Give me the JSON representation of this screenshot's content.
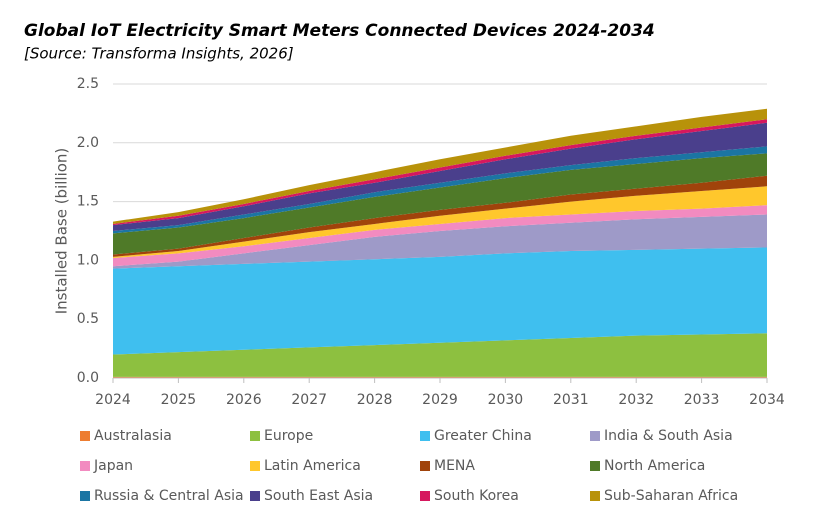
{
  "chart_data": {
    "type": "stacked-area",
    "title": "Global IoT Electricity Smart Meters Connected Devices 2024-2034",
    "subtitle": "[Source: Transforma Insights, 2026]",
    "y_label": "Installed Base (billion)",
    "x": [
      2024,
      2025,
      2026,
      2027,
      2028,
      2029,
      2030,
      2031,
      2032,
      2033,
      2034
    ],
    "xlim": [
      2024,
      2034
    ],
    "xticks": [
      2024,
      2025,
      2026,
      2027,
      2028,
      2029,
      2030,
      2031,
      2032,
      2033,
      2034
    ],
    "ylim": [
      0,
      2.5
    ],
    "yticks": [
      {
        "value": 0,
        "label": "0.0"
      },
      0.5,
      {
        "value": 1,
        "label": "1.0"
      },
      1.5,
      {
        "value": 2,
        "label": "2.0"
      },
      2.5
    ],
    "grid": true,
    "series": [
      {
        "name": "Australasia",
        "color": "#ed7d31",
        "values": [
          0.01,
          0.01,
          0.01,
          0.01,
          0.01,
          0.01,
          0.01,
          0.01,
          0.01,
          0.01,
          0.01
        ]
      },
      {
        "name": "Europe",
        "color": "#8dc040",
        "values": [
          0.19,
          0.21,
          0.23,
          0.25,
          0.27,
          0.29,
          0.31,
          0.33,
          0.35,
          0.36,
          0.37
        ]
      },
      {
        "name": "Greater China",
        "color": "#3fbfef",
        "values": [
          0.73,
          0.73,
          0.73,
          0.73,
          0.73,
          0.73,
          0.74,
          0.74,
          0.73,
          0.73,
          0.73
        ]
      },
      {
        "name": "India & South Asia",
        "color": "#9e9ac8",
        "values": [
          0.02,
          0.04,
          0.09,
          0.14,
          0.19,
          0.22,
          0.23,
          0.24,
          0.26,
          0.27,
          0.28
        ]
      },
      {
        "name": "Japan",
        "color": "#f28bc0",
        "values": [
          0.07,
          0.07,
          0.06,
          0.06,
          0.06,
          0.06,
          0.07,
          0.07,
          0.07,
          0.07,
          0.08
        ]
      },
      {
        "name": "Latin America",
        "color": "#ffc72c",
        "values": [
          0.01,
          0.02,
          0.04,
          0.05,
          0.05,
          0.07,
          0.08,
          0.11,
          0.13,
          0.15,
          0.16
        ]
      },
      {
        "name": "MENA",
        "color": "#a0430b",
        "values": [
          0.02,
          0.02,
          0.03,
          0.04,
          0.05,
          0.05,
          0.05,
          0.06,
          0.06,
          0.07,
          0.09
        ]
      },
      {
        "name": "North America",
        "color": "#4f7a28",
        "values": [
          0.18,
          0.18,
          0.17,
          0.17,
          0.18,
          0.19,
          0.21,
          0.21,
          0.21,
          0.21,
          0.19
        ]
      },
      {
        "name": "Russia & Central Asia",
        "color": "#1b75a3",
        "values": [
          0.02,
          0.02,
          0.03,
          0.03,
          0.04,
          0.04,
          0.04,
          0.04,
          0.05,
          0.05,
          0.06
        ]
      },
      {
        "name": "South East Asia",
        "color": "#4a3f8c",
        "values": [
          0.05,
          0.06,
          0.07,
          0.09,
          0.08,
          0.1,
          0.12,
          0.14,
          0.16,
          0.18,
          0.2
        ]
      },
      {
        "name": "South Korea",
        "color": "#d6185e",
        "values": [
          0.01,
          0.02,
          0.02,
          0.02,
          0.03,
          0.03,
          0.03,
          0.03,
          0.03,
          0.03,
          0.03
        ]
      },
      {
        "name": "Sub-Saharan Africa",
        "color": "#b8920a",
        "values": [
          0.02,
          0.03,
          0.04,
          0.05,
          0.06,
          0.07,
          0.07,
          0.08,
          0.08,
          0.09,
          0.09
        ]
      }
    ]
  }
}
